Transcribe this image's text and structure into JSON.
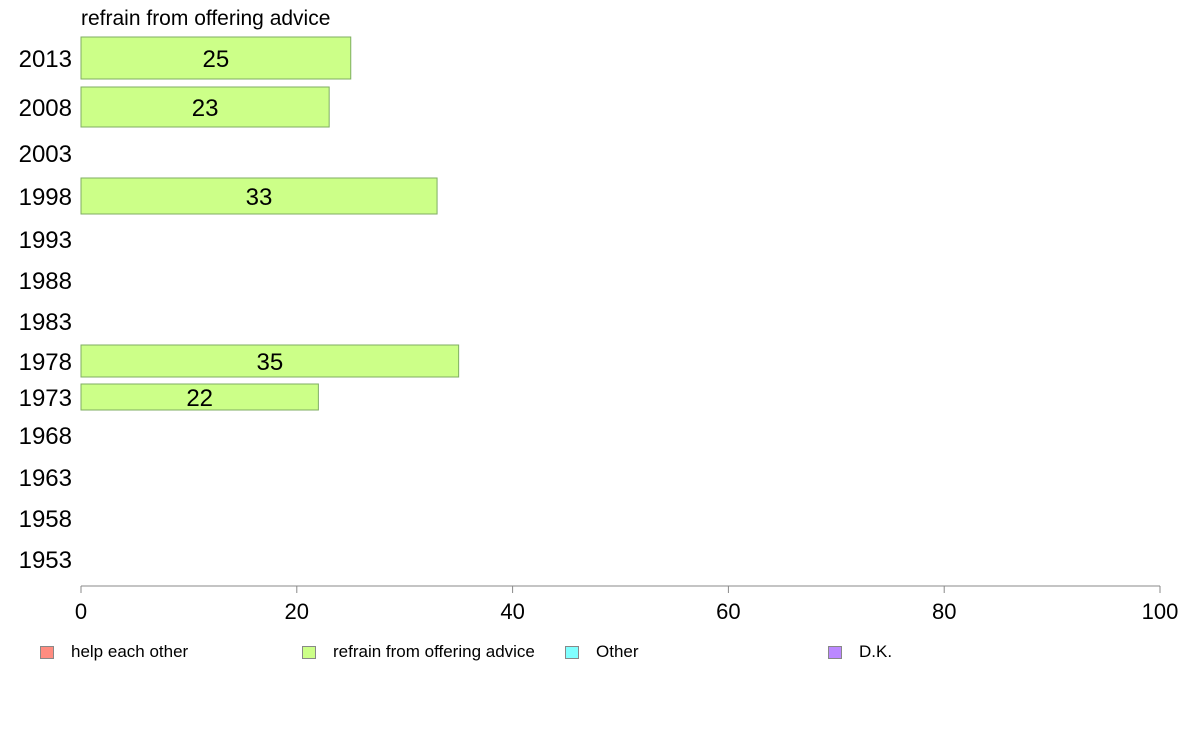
{
  "chart_data": {
    "type": "bar",
    "orientation": "horizontal",
    "title": "refrain from offering advice",
    "categories": [
      "2013",
      "2008",
      "2003",
      "1998",
      "1993",
      "1988",
      "1983",
      "1978",
      "1973",
      "1968",
      "1963",
      "1958",
      "1953"
    ],
    "series": [
      {
        "name": "refrain from offering advice",
        "color": "#ccff88",
        "values": [
          25,
          23,
          null,
          33,
          null,
          null,
          null,
          35,
          22,
          null,
          null,
          null,
          null
        ],
        "labels": [
          "25",
          "23",
          "",
          "33",
          "",
          "",
          "",
          "35",
          "22",
          "",
          "",
          "",
          ""
        ]
      }
    ],
    "xlim": [
      0,
      100
    ],
    "xticks": [
      "0",
      "20",
      "40",
      "60",
      "80",
      "100"
    ],
    "grid": false,
    "legend_position": "bottom",
    "legend": [
      {
        "label": "help each other",
        "color": "#ff8c80"
      },
      {
        "label": "refrain from offering advice",
        "color": "#ccff88"
      },
      {
        "label": "Other",
        "color": "#80ffff"
      },
      {
        "label": "D.K.",
        "color": "#bb88ff"
      }
    ]
  }
}
